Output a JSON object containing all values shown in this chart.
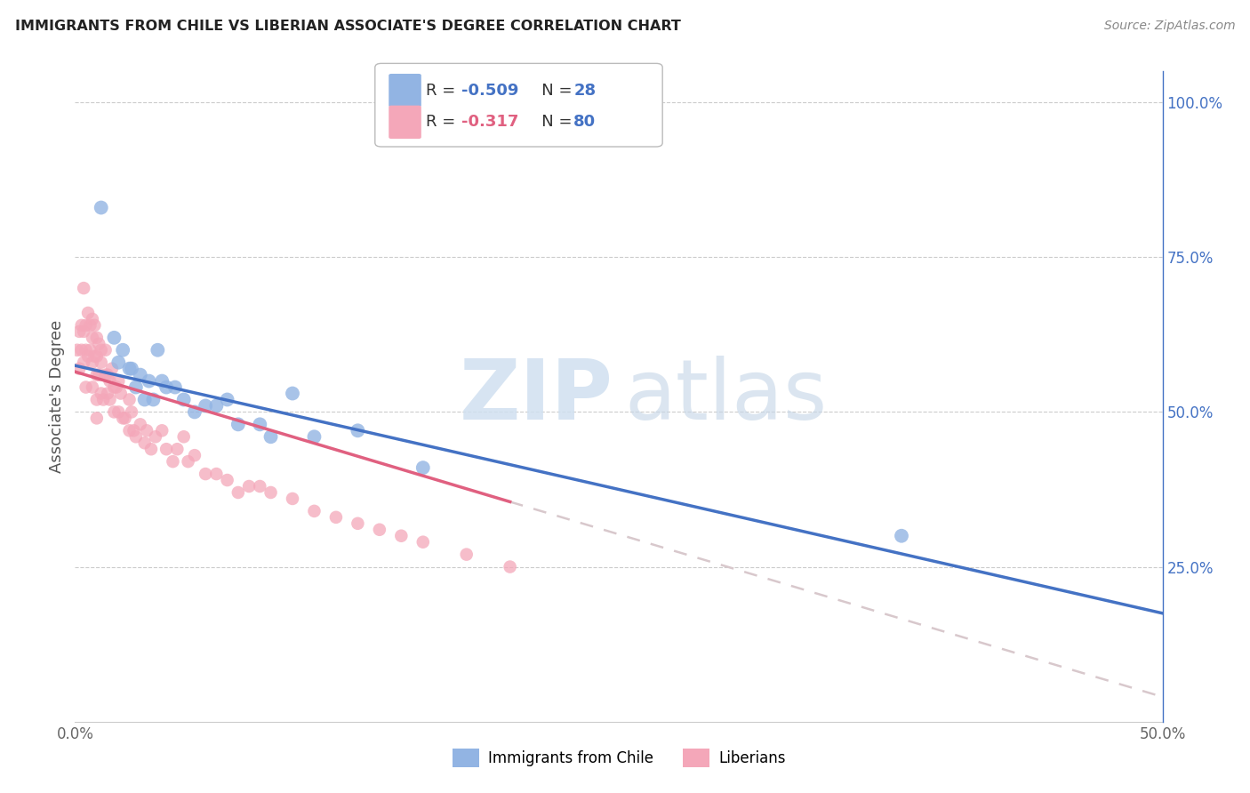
{
  "title": "IMMIGRANTS FROM CHILE VS LIBERIAN ASSOCIATE'S DEGREE CORRELATION CHART",
  "source": "Source: ZipAtlas.com",
  "ylabel": "Associate's Degree",
  "xlim": [
    0.0,
    0.5
  ],
  "ylim": [
    0.0,
    1.05
  ],
  "legend_label1": "Immigrants from Chile",
  "legend_label2": "Liberians",
  "R1": -0.509,
  "N1": 28,
  "R2": -0.317,
  "N2": 80,
  "color_chile": "#92b4e3",
  "color_liberia": "#f4a7b9",
  "color_trendline_chile": "#4472c4",
  "color_trendline_liberia": "#e06080",
  "color_trendline_extended": "#d8c8cc",
  "background_color": "#ffffff",
  "grid_color": "#cccccc",
  "chile_x": [
    0.012,
    0.018,
    0.02,
    0.022,
    0.025,
    0.026,
    0.028,
    0.03,
    0.032,
    0.034,
    0.036,
    0.038,
    0.04,
    0.042,
    0.046,
    0.05,
    0.055,
    0.06,
    0.065,
    0.07,
    0.075,
    0.085,
    0.09,
    0.1,
    0.11,
    0.13,
    0.16,
    0.38
  ],
  "chile_y": [
    0.83,
    0.62,
    0.58,
    0.6,
    0.57,
    0.57,
    0.54,
    0.56,
    0.52,
    0.55,
    0.52,
    0.6,
    0.55,
    0.54,
    0.54,
    0.52,
    0.5,
    0.51,
    0.51,
    0.52,
    0.48,
    0.48,
    0.46,
    0.53,
    0.46,
    0.47,
    0.41,
    0.3
  ],
  "liberia_x": [
    0.001,
    0.002,
    0.002,
    0.003,
    0.003,
    0.004,
    0.004,
    0.004,
    0.005,
    0.005,
    0.005,
    0.006,
    0.006,
    0.007,
    0.007,
    0.008,
    0.008,
    0.008,
    0.008,
    0.009,
    0.009,
    0.01,
    0.01,
    0.01,
    0.01,
    0.01,
    0.011,
    0.011,
    0.012,
    0.012,
    0.012,
    0.013,
    0.014,
    0.014,
    0.015,
    0.015,
    0.016,
    0.016,
    0.017,
    0.018,
    0.018,
    0.019,
    0.02,
    0.02,
    0.021,
    0.022,
    0.023,
    0.025,
    0.025,
    0.026,
    0.027,
    0.028,
    0.03,
    0.032,
    0.033,
    0.035,
    0.037,
    0.04,
    0.042,
    0.045,
    0.047,
    0.05,
    0.052,
    0.055,
    0.06,
    0.065,
    0.07,
    0.075,
    0.08,
    0.085,
    0.09,
    0.1,
    0.11,
    0.12,
    0.13,
    0.14,
    0.15,
    0.16,
    0.18,
    0.2
  ],
  "liberia_y": [
    0.6,
    0.63,
    0.57,
    0.64,
    0.6,
    0.7,
    0.63,
    0.58,
    0.64,
    0.6,
    0.54,
    0.66,
    0.59,
    0.64,
    0.6,
    0.65,
    0.62,
    0.58,
    0.54,
    0.64,
    0.59,
    0.62,
    0.59,
    0.56,
    0.52,
    0.49,
    0.61,
    0.56,
    0.6,
    0.53,
    0.58,
    0.52,
    0.56,
    0.6,
    0.53,
    0.56,
    0.52,
    0.55,
    0.57,
    0.5,
    0.54,
    0.54,
    0.55,
    0.5,
    0.53,
    0.49,
    0.49,
    0.52,
    0.47,
    0.5,
    0.47,
    0.46,
    0.48,
    0.45,
    0.47,
    0.44,
    0.46,
    0.47,
    0.44,
    0.42,
    0.44,
    0.46,
    0.42,
    0.43,
    0.4,
    0.4,
    0.39,
    0.37,
    0.38,
    0.38,
    0.37,
    0.36,
    0.34,
    0.33,
    0.32,
    0.31,
    0.3,
    0.29,
    0.27,
    0.25
  ],
  "chile_trend_x0": 0.0,
  "chile_trend_y0": 0.575,
  "chile_trend_x1": 0.5,
  "chile_trend_y1": 0.175,
  "liberia_trend_x0": 0.0,
  "liberia_trend_y0": 0.565,
  "liberia_trend_x1": 0.2,
  "liberia_trend_y1": 0.355
}
